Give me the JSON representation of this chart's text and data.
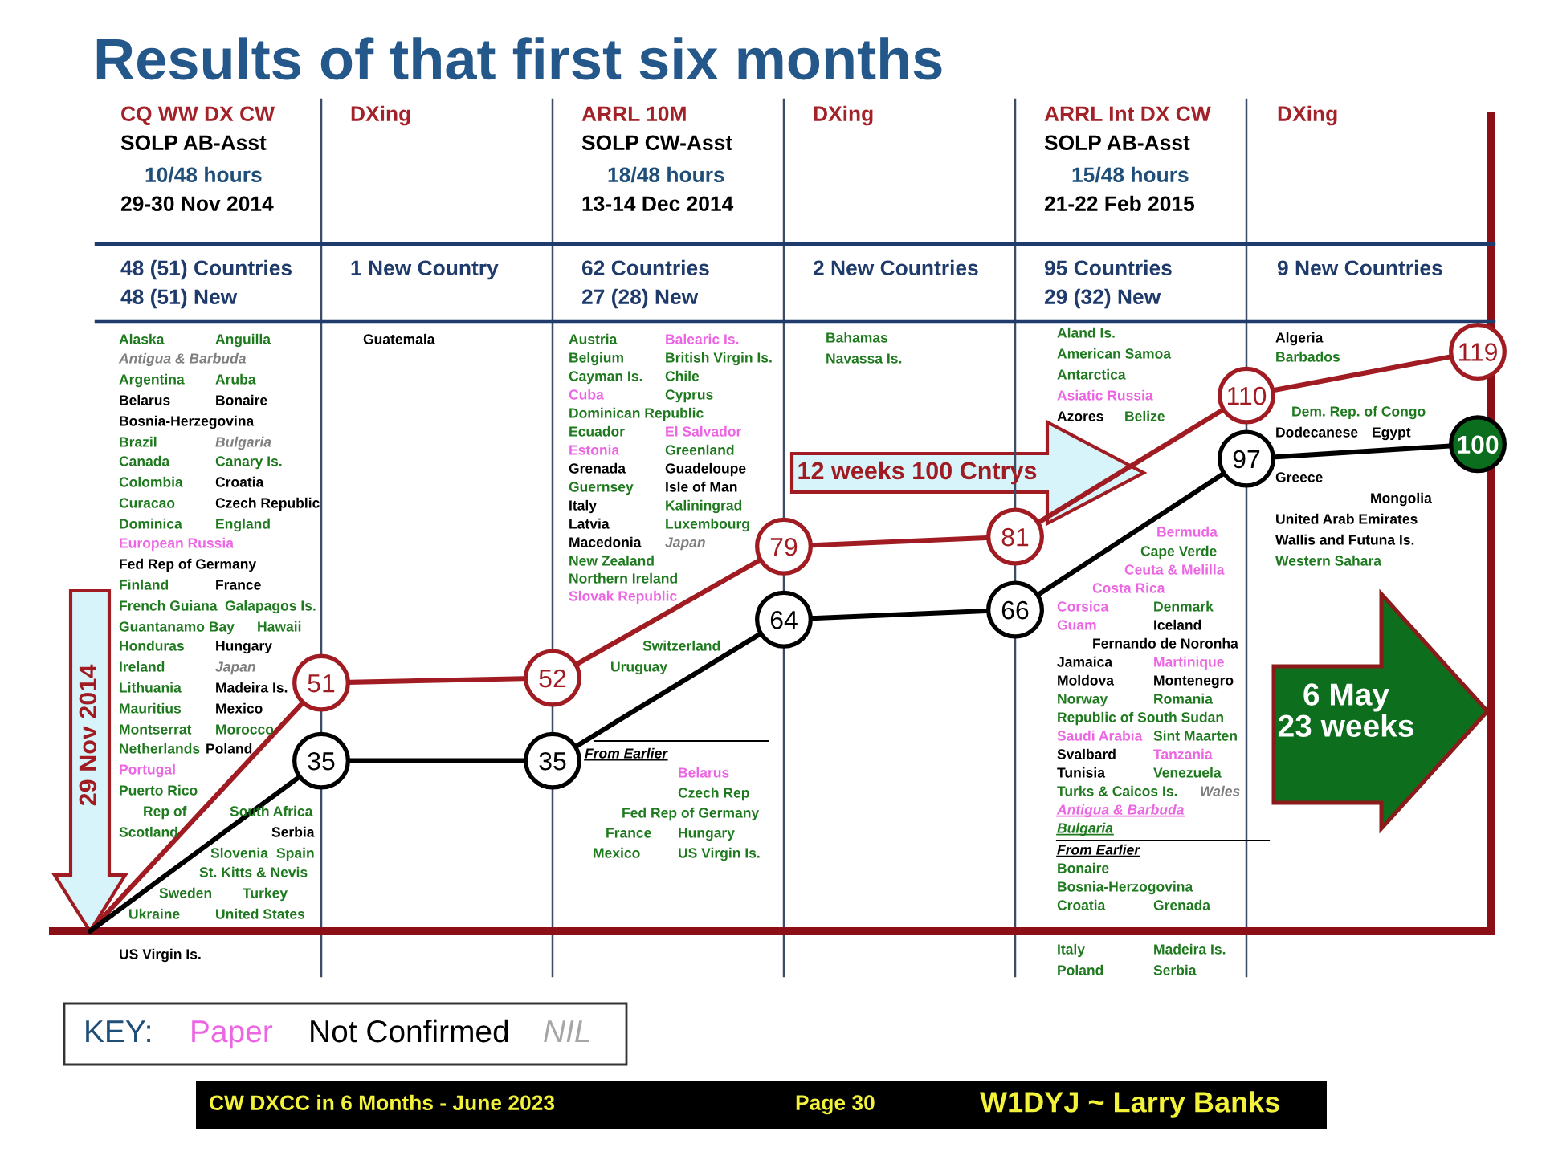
{
  "chart_data": {
    "type": "line",
    "title": "Results of that first six months",
    "categories": [
      null,
      null,
      null,
      null,
      null,
      null,
      null
    ],
    "series": [
      {
        "color": "#a01c22",
        "values": [
          0,
          51,
          52,
          79,
          81,
          110,
          119
        ],
        "value_labels": [
          null,
          "51",
          "52",
          "79",
          "81",
          "110",
          "119"
        ],
        "colors": [
          null,
          "#ffffff",
          "#ffffff",
          "#ffffff",
          "#ffffff",
          "#ffffff",
          "#ffffff"
        ]
      },
      {
        "color": "#000000",
        "values": [
          0,
          35,
          35,
          64,
          66,
          97,
          100
        ],
        "value_labels": [
          null,
          "35",
          "35",
          "64",
          "66",
          "97",
          "100"
        ],
        "colors": [
          null,
          "#ffffff",
          "#ffffff",
          "#ffffff",
          "#ffffff",
          "#ffffff",
          "#0b6e1f"
        ]
      }
    ],
    "marker": "circle",
    "line_style": "solid",
    "grid": "x",
    "annotations": [
      "CQ WW DX CW",
      "SOLP AB-Asst",
      "10/48 hours",
      "29-30 Nov 2014",
      "DXing",
      "ARRL 10M",
      "SOLP CW-Asst",
      "18/48 hours",
      "13-14 Dec 2014",
      "DXing",
      "ARRL Int DX CW",
      "SOLP AB-Asst",
      "15/48 hours",
      "21-22 Feb 2015",
      "DXing",
      "48 (51) Countries",
      "48 (51) New",
      "1 New Country",
      "62 Countries",
      "27 (28) New",
      "2 New Countries",
      "95 Countries",
      "29 (32) New",
      "9 New Countries",
      "Alaska",
      "Anguilla",
      "Antigua & Barbuda",
      "Argentina",
      "Aruba",
      "Belarus",
      "Bonaire",
      "Bosnia-Herzegovina",
      "Brazil",
      "Bulgaria",
      "Canada",
      "Canary Is.",
      "Colombia",
      "Croatia",
      "Curacao",
      "Czech Republic",
      "Dominica",
      "England",
      "European Russia",
      "Fed Rep of Germany",
      "Finland",
      "France",
      "French Guiana",
      "Galapagos Is.",
      "Guantanamo Bay",
      "Hawaii",
      "Honduras",
      "Hungary",
      "Ireland",
      "Japan",
      "Lithuania",
      "Madeira Is.",
      "Mauritius",
      "Mexico",
      "Montserrat",
      "Morocco",
      "Netherlands",
      "Poland",
      "Portugal",
      "Puerto Rico",
      "Rep of",
      "South Africa",
      "Scotland",
      "Serbia",
      "Slovenia",
      "Spain",
      "St. Kitts & Nevis",
      "Sweden",
      "Turkey",
      "Ukraine",
      "United States",
      "US Virgin Is.",
      "Guatemala",
      "Austria",
      "Balearic Is.",
      "Belgium",
      "British Virgin Is.",
      "Cayman Is.",
      "Chile",
      "Cuba",
      "Cyprus",
      "Dominican Republic",
      "Ecuador",
      "El Salvador",
      "Estonia",
      "Greenland",
      "Grenada",
      "Guadeloupe",
      "Guernsey",
      "Isle of Man",
      "Italy",
      "Kaliningrad",
      "Latvia",
      "Luxembourg",
      "Macedonia",
      "Japan",
      "New Zealand",
      "Northern Ireland",
      "Slovak Republic",
      "Switzerland",
      "Uruguay",
      "From Earlier",
      "Belarus",
      "Czech Rep",
      "Fed Rep of Germany",
      "France",
      "Hungary",
      "Mexico",
      "US Virgin Is.",
      "Bahamas",
      "Navassa Is.",
      "Aland Is.",
      "American Samoa",
      "Antarctica",
      "Asiatic Russia",
      "Azores",
      "Belize",
      "Bermuda",
      "Cape Verde",
      "Ceuta & Melilla",
      "Costa Rica",
      "Corsica",
      "Denmark",
      "Guam",
      "Iceland",
      "Fernando de Noronha",
      "Jamaica",
      "Martinique",
      "Moldova",
      "Montenegro",
      "Norway",
      "Romania",
      "Republic of South Sudan",
      "Saudi Arabia",
      "Sint Maarten",
      "Svalbard",
      "Tanzania",
      "Tunisia",
      "Venezuela",
      "Turks & Caicos Is.",
      "Wales",
      "Antigua & Barbuda",
      "Bulgaria",
      "From Earlier",
      "Bonaire",
      "Bosnia-Herzogovina",
      "Croatia",
      "Grenada",
      "Italy",
      "Madeira Is.",
      "Poland",
      "Serbia",
      "Algeria",
      "Barbados",
      "Dem. Rep. of Congo",
      "Dodecanese",
      "Egypt",
      "Greece",
      "Mongolia",
      "United Arab Emirates",
      "Wallis and Futuna Is.",
      "Western Sahara",
      "12 weeks 100 Cntrys",
      "29 Nov 2014",
      "6 May\n23 weeks",
      "KEY:",
      "Paper",
      "Not Confirmed",
      "NIL",
      "CW DXCC in 6 Months - June 2023",
      "Page 30",
      "W1DYJ ~ Larry Banks"
    ]
  }
}
